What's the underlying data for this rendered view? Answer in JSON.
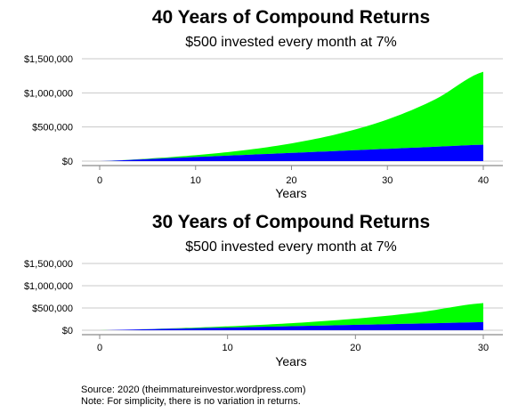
{
  "chart_data": [
    {
      "type": "area",
      "stacked": true,
      "title": "40 Years of Compound Returns",
      "subtitle": "$500 invested every month at 7%",
      "xlabel": "Years",
      "ylabel": "",
      "xlim": [
        0,
        40
      ],
      "ylim": [
        0,
        1500000
      ],
      "xticks": [
        0,
        10,
        20,
        30,
        40
      ],
      "yticks": [
        0,
        500000,
        1000000,
        1500000
      ],
      "ytick_labels": [
        "$0",
        "$500,000",
        "$1,000,000",
        "$1,500,000"
      ],
      "grid": "horizontal",
      "legend": "none",
      "x": [
        0,
        5,
        10,
        15,
        20,
        25,
        30,
        35,
        40
      ],
      "series": [
        {
          "color": "#0000ff",
          "values": [
            0,
            30000,
            60000,
            90000,
            120000,
            150000,
            180000,
            210000,
            240000
          ]
        },
        {
          "color": "#00ff00",
          "values": [
            0,
            6000,
            27000,
            68000,
            140000,
            254000,
            430000,
            696000,
            1070000
          ]
        }
      ]
    },
    {
      "type": "area",
      "stacked": true,
      "title": "30 Years of Compound Returns",
      "subtitle": "$500 invested every month at 7%",
      "xlabel": "Years",
      "ylabel": "",
      "xlim": [
        0,
        30
      ],
      "ylim": [
        0,
        1500000
      ],
      "xticks": [
        0,
        10,
        20,
        30
      ],
      "yticks": [
        0,
        500000,
        1000000,
        1500000
      ],
      "ytick_labels": [
        "$0",
        "$500,000",
        "$1,000,000",
        "$1,500,000"
      ],
      "grid": "horizontal",
      "legend": "none",
      "x": [
        0,
        5,
        10,
        15,
        20,
        25,
        30
      ],
      "series": [
        {
          "color": "#0000ff",
          "values": [
            0,
            30000,
            60000,
            90000,
            120000,
            150000,
            180000
          ]
        },
        {
          "color": "#00ff00",
          "values": [
            0,
            6000,
            27000,
            68000,
            140000,
            254000,
            430000
          ]
        }
      ]
    }
  ],
  "notes": {
    "source": "Source: 2020 (theimmatureinvestor.wordpress.com)",
    "note": "Note: For simplicity, there is no variation in returns."
  }
}
